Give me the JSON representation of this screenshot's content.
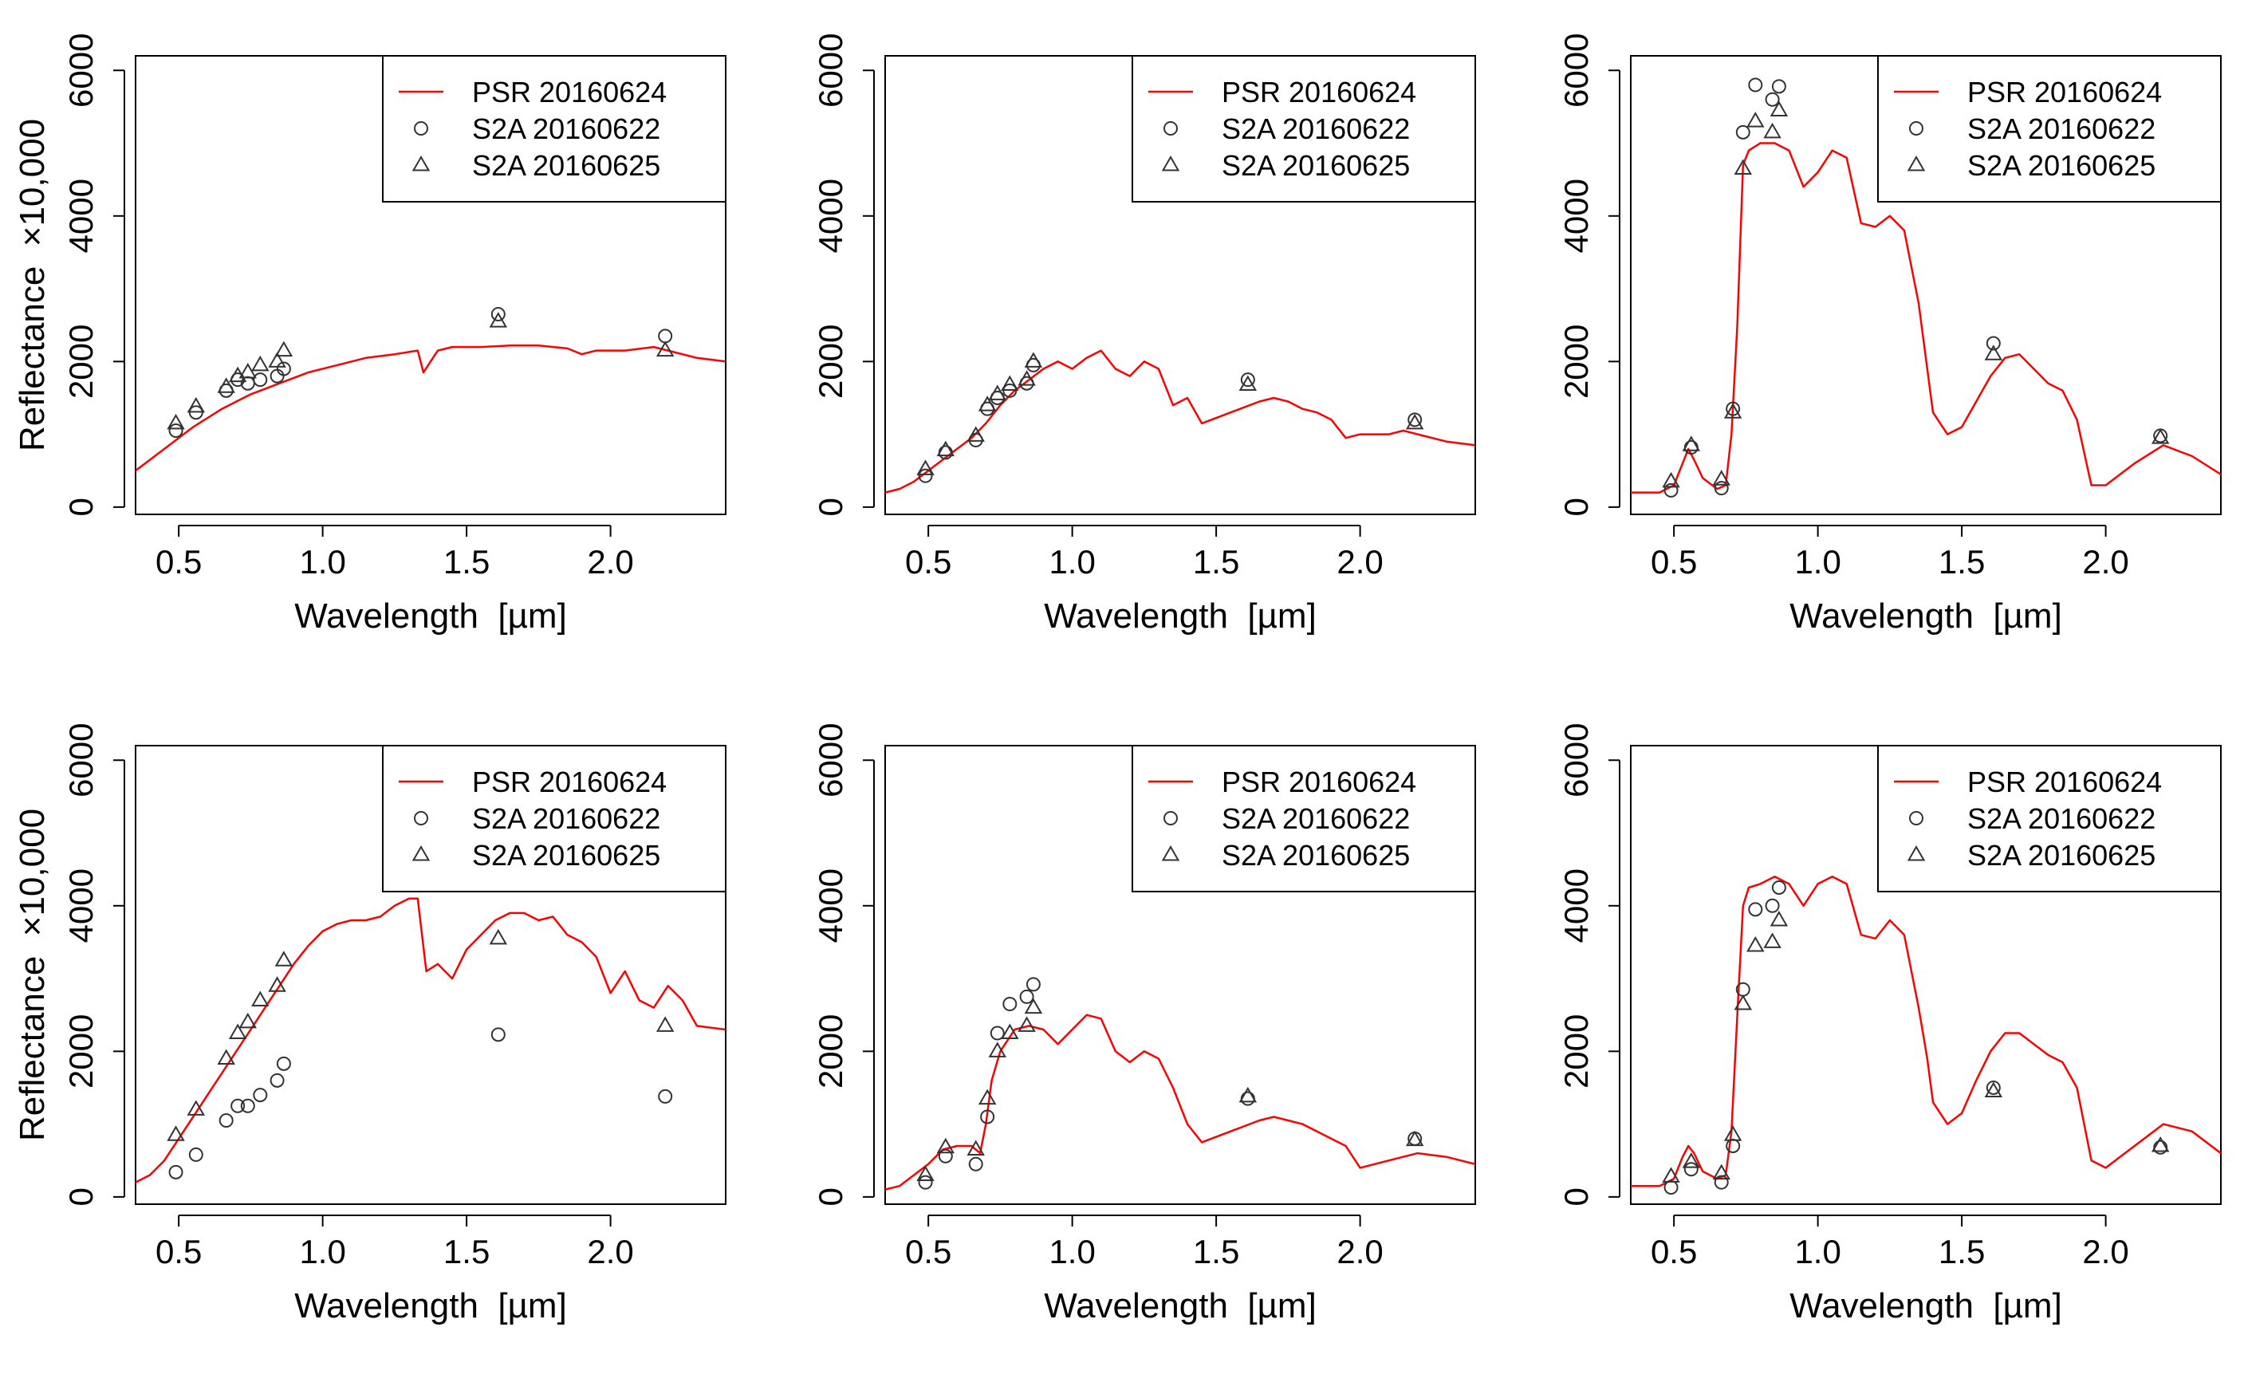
{
  "colors": {
    "psr_line": "#ff0000",
    "markers": "#333333",
    "axes": "#000000"
  },
  "chart_data": [
    {
      "type": "line",
      "panel": "top-left",
      "xlabel": "Wavelength  [µm]",
      "ylabel": "Reflectance  ×10,000",
      "xlim": [
        0.35,
        2.4
      ],
      "ylim": [
        -100,
        6200
      ],
      "xticks": [
        "0.5",
        "1.0",
        "1.5",
        "2.0"
      ],
      "yticks": [
        "0",
        "2000",
        "4000",
        "6000"
      ],
      "legend_position": "top-right",
      "legend": [
        "PSR 20160624",
        "S2A 20160622",
        "S2A 20160625"
      ],
      "series": [
        {
          "name": "PSR 20160624",
          "marker": "line",
          "x": [
            0.35,
            0.45,
            0.55,
            0.65,
            0.75,
            0.85,
            0.95,
            1.05,
            1.15,
            1.25,
            1.33,
            1.35,
            1.4,
            1.45,
            1.55,
            1.65,
            1.75,
            1.85,
            1.9,
            1.95,
            2.05,
            2.15,
            2.2,
            2.3,
            2.4
          ],
          "y": [
            500,
            800,
            1100,
            1350,
            1550,
            1700,
            1850,
            1950,
            2050,
            2100,
            2150,
            1850,
            2150,
            2200,
            2200,
            2220,
            2220,
            2180,
            2100,
            2150,
            2150,
            2200,
            2150,
            2050,
            2000
          ]
        },
        {
          "name": "S2A 20160622",
          "marker": "circle",
          "x": [
            0.49,
            0.56,
            0.665,
            0.705,
            0.74,
            0.783,
            0.842,
            0.865,
            1.61,
            2.19
          ],
          "y": [
            1050,
            1300,
            1600,
            1750,
            1700,
            1750,
            1800,
            1900,
            2650,
            2350
          ]
        },
        {
          "name": "S2A 20160625",
          "marker": "triangle",
          "x": [
            0.49,
            0.56,
            0.665,
            0.705,
            0.74,
            0.783,
            0.842,
            0.865,
            1.61,
            2.19
          ],
          "y": [
            1150,
            1380,
            1650,
            1800,
            1850,
            1950,
            2000,
            2150,
            2550,
            2150
          ]
        }
      ]
    },
    {
      "type": "line",
      "panel": "top-middle",
      "xlabel": "Wavelength  [µm]",
      "ylabel": "",
      "xlim": [
        0.35,
        2.4
      ],
      "ylim": [
        -100,
        6200
      ],
      "xticks": [
        "0.5",
        "1.0",
        "1.5",
        "2.0"
      ],
      "yticks": [
        "0",
        "2000",
        "4000",
        "6000"
      ],
      "legend_position": "top-right",
      "legend": [
        "PSR 20160624",
        "S2A 20160622",
        "S2A 20160625"
      ],
      "series": [
        {
          "name": "PSR 20160624",
          "marker": "line",
          "x": [
            0.35,
            0.4,
            0.45,
            0.5,
            0.55,
            0.6,
            0.65,
            0.7,
            0.75,
            0.8,
            0.85,
            0.9,
            0.95,
            1.0,
            1.05,
            1.1,
            1.15,
            1.2,
            1.25,
            1.3,
            1.35,
            1.4,
            1.45,
            1.55,
            1.65,
            1.7,
            1.75,
            1.8,
            1.85,
            1.9,
            1.95,
            2.0,
            2.1,
            2.15,
            2.2,
            2.3,
            2.4
          ],
          "y": [
            200,
            250,
            350,
            500,
            650,
            800,
            950,
            1150,
            1400,
            1600,
            1750,
            1900,
            2000,
            1900,
            2050,
            2150,
            1900,
            1800,
            2000,
            1900,
            1400,
            1500,
            1150,
            1300,
            1450,
            1500,
            1450,
            1350,
            1300,
            1200,
            950,
            1000,
            1000,
            1050,
            1000,
            900,
            850
          ]
        },
        {
          "name": "S2A 20160622",
          "marker": "circle",
          "x": [
            0.49,
            0.56,
            0.665,
            0.705,
            0.74,
            0.783,
            0.842,
            0.865,
            1.61,
            2.19
          ],
          "y": [
            430,
            750,
            920,
            1350,
            1500,
            1600,
            1700,
            1950,
            1750,
            1200
          ]
        },
        {
          "name": "S2A 20160625",
          "marker": "triangle",
          "x": [
            0.49,
            0.56,
            0.665,
            0.705,
            0.74,
            0.783,
            0.842,
            0.865,
            1.61,
            2.19
          ],
          "y": [
            520,
            780,
            980,
            1400,
            1550,
            1680,
            1750,
            2000,
            1680,
            1150
          ]
        }
      ]
    },
    {
      "type": "line",
      "panel": "top-right",
      "xlabel": "Wavelength  [µm]",
      "ylabel": "",
      "xlim": [
        0.35,
        2.4
      ],
      "ylim": [
        -100,
        6200
      ],
      "xticks": [
        "0.5",
        "1.0",
        "1.5",
        "2.0"
      ],
      "yticks": [
        "0",
        "2000",
        "4000",
        "6000"
      ],
      "legend_position": "top-right",
      "legend": [
        "PSR 20160624",
        "S2A 20160622",
        "S2A 20160625"
      ],
      "series": [
        {
          "name": "PSR 20160624",
          "marker": "line",
          "x": [
            0.35,
            0.45,
            0.5,
            0.53,
            0.55,
            0.57,
            0.6,
            0.65,
            0.68,
            0.7,
            0.72,
            0.74,
            0.76,
            0.8,
            0.85,
            0.9,
            0.95,
            1.0,
            1.05,
            1.1,
            1.15,
            1.2,
            1.25,
            1.3,
            1.35,
            1.38,
            1.4,
            1.45,
            1.5,
            1.55,
            1.6,
            1.65,
            1.7,
            1.75,
            1.8,
            1.85,
            1.9,
            1.95,
            2.0,
            2.1,
            2.2,
            2.3,
            2.4
          ],
          "y": [
            200,
            200,
            300,
            600,
            800,
            650,
            400,
            250,
            300,
            1000,
            2500,
            4700,
            4900,
            5000,
            5000,
            4900,
            4400,
            4600,
            4900,
            4800,
            3900,
            3850,
            4000,
            3800,
            2800,
            1900,
            1300,
            1000,
            1100,
            1450,
            1800,
            2050,
            2100,
            1900,
            1700,
            1600,
            1200,
            300,
            300,
            600,
            850,
            700,
            450
          ]
        },
        {
          "name": "S2A 20160622",
          "marker": "circle",
          "x": [
            0.49,
            0.56,
            0.665,
            0.705,
            0.74,
            0.783,
            0.842,
            0.865,
            1.61,
            2.19
          ],
          "y": [
            230,
            820,
            260,
            1350,
            5150,
            5800,
            5600,
            5780,
            2250,
            980
          ]
        },
        {
          "name": "S2A 20160625",
          "marker": "triangle",
          "x": [
            0.49,
            0.56,
            0.665,
            0.705,
            0.74,
            0.783,
            0.842,
            0.865,
            1.61,
            2.19
          ],
          "y": [
            350,
            850,
            380,
            1300,
            4650,
            5300,
            5150,
            5450,
            2100,
            950
          ]
        }
      ]
    },
    {
      "type": "line",
      "panel": "bottom-left",
      "xlabel": "Wavelength  [µm]",
      "ylabel": "Reflectance  ×10,000",
      "xlim": [
        0.35,
        2.4
      ],
      "ylim": [
        -100,
        6200
      ],
      "xticks": [
        "0.5",
        "1.0",
        "1.5",
        "2.0"
      ],
      "yticks": [
        "0",
        "2000",
        "4000",
        "6000"
      ],
      "legend_position": "top-right",
      "legend": [
        "PSR 20160624",
        "S2A 20160622",
        "S2A 20160625"
      ],
      "series": [
        {
          "name": "PSR 20160624",
          "marker": "line",
          "x": [
            0.35,
            0.4,
            0.45,
            0.5,
            0.55,
            0.6,
            0.65,
            0.7,
            0.75,
            0.8,
            0.85,
            0.9,
            0.95,
            1.0,
            1.05,
            1.1,
            1.15,
            1.2,
            1.25,
            1.3,
            1.33,
            1.36,
            1.4,
            1.45,
            1.5,
            1.55,
            1.6,
            1.65,
            1.7,
            1.75,
            1.8,
            1.85,
            1.9,
            1.95,
            2.0,
            2.05,
            2.1,
            2.15,
            2.2,
            2.25,
            2.3,
            2.4
          ],
          "y": [
            200,
            300,
            500,
            800,
            1100,
            1400,
            1700,
            2000,
            2300,
            2600,
            2900,
            3200,
            3450,
            3650,
            3750,
            3800,
            3800,
            3850,
            4000,
            4100,
            4100,
            3100,
            3200,
            3000,
            3400,
            3600,
            3800,
            3900,
            3900,
            3800,
            3850,
            3600,
            3500,
            3300,
            2800,
            3100,
            2700,
            2600,
            2900,
            2700,
            2350,
            2300
          ]
        },
        {
          "name": "S2A 20160622",
          "marker": "circle",
          "x": [
            0.49,
            0.56,
            0.665,
            0.705,
            0.74,
            0.783,
            0.842,
            0.865,
            1.61,
            2.19
          ],
          "y": [
            340,
            580,
            1050,
            1250,
            1250,
            1400,
            1600,
            1830,
            2230,
            1380
          ]
        },
        {
          "name": "S2A 20160625",
          "marker": "triangle",
          "x": [
            0.49,
            0.56,
            0.665,
            0.705,
            0.74,
            0.783,
            0.842,
            0.865,
            1.61,
            2.19
          ],
          "y": [
            850,
            1200,
            1900,
            2250,
            2400,
            2700,
            2900,
            3250,
            3550,
            2350
          ]
        }
      ]
    },
    {
      "type": "line",
      "panel": "bottom-middle",
      "xlabel": "Wavelength  [µm]",
      "ylabel": "",
      "xlim": [
        0.35,
        2.4
      ],
      "ylim": [
        -100,
        6200
      ],
      "xticks": [
        "0.5",
        "1.0",
        "1.5",
        "2.0"
      ],
      "yticks": [
        "0",
        "2000",
        "4000",
        "6000"
      ],
      "legend_position": "top-right",
      "legend": [
        "PSR 20160624",
        "S2A 20160622",
        "S2A 20160625"
      ],
      "series": [
        {
          "name": "PSR 20160624",
          "marker": "line",
          "x": [
            0.35,
            0.4,
            0.45,
            0.5,
            0.55,
            0.6,
            0.65,
            0.68,
            0.7,
            0.72,
            0.75,
            0.8,
            0.85,
            0.9,
            0.95,
            1.0,
            1.05,
            1.1,
            1.15,
            1.2,
            1.25,
            1.3,
            1.35,
            1.4,
            1.45,
            1.55,
            1.65,
            1.7,
            1.75,
            1.8,
            1.85,
            1.9,
            1.95,
            2.0,
            2.1,
            2.2,
            2.3,
            2.4
          ],
          "y": [
            100,
            150,
            300,
            450,
            650,
            700,
            700,
            600,
            1000,
            1600,
            2000,
            2300,
            2350,
            2300,
            2100,
            2300,
            2500,
            2450,
            2000,
            1850,
            2000,
            1900,
            1500,
            1000,
            750,
            900,
            1050,
            1100,
            1050,
            1000,
            900,
            800,
            700,
            400,
            500,
            600,
            550,
            450
          ]
        },
        {
          "name": "S2A 20160622",
          "marker": "circle",
          "x": [
            0.49,
            0.56,
            0.665,
            0.705,
            0.74,
            0.783,
            0.842,
            0.865,
            1.61,
            2.19
          ],
          "y": [
            200,
            560,
            450,
            1100,
            2250,
            2650,
            2750,
            2920,
            1350,
            800
          ]
        },
        {
          "name": "S2A 20160625",
          "marker": "triangle",
          "x": [
            0.49,
            0.56,
            0.665,
            0.705,
            0.74,
            0.783,
            0.842,
            0.865,
            1.61,
            2.19
          ],
          "y": [
            300,
            680,
            650,
            1350,
            2000,
            2250,
            2350,
            2600,
            1380,
            780
          ]
        }
      ]
    },
    {
      "type": "line",
      "panel": "bottom-right",
      "xlabel": "Wavelength  [µm]",
      "ylabel": "",
      "xlim": [
        0.35,
        2.4
      ],
      "ylim": [
        -100,
        6200
      ],
      "xticks": [
        "0.5",
        "1.0",
        "1.5",
        "2.0"
      ],
      "yticks": [
        "0",
        "2000",
        "4000",
        "6000"
      ],
      "legend_position": "top-right",
      "legend": [
        "PSR 20160624",
        "S2A 20160622",
        "S2A 20160625"
      ],
      "series": [
        {
          "name": "PSR 20160624",
          "marker": "line",
          "x": [
            0.35,
            0.45,
            0.5,
            0.53,
            0.55,
            0.57,
            0.6,
            0.65,
            0.68,
            0.7,
            0.72,
            0.74,
            0.76,
            0.8,
            0.85,
            0.9,
            0.95,
            1.0,
            1.05,
            1.1,
            1.15,
            1.2,
            1.25,
            1.3,
            1.35,
            1.38,
            1.4,
            1.45,
            1.5,
            1.55,
            1.6,
            1.65,
            1.7,
            1.75,
            1.8,
            1.85,
            1.9,
            1.95,
            2.0,
            2.1,
            2.2,
            2.3,
            2.4
          ],
          "y": [
            150,
            150,
            250,
            550,
            700,
            600,
            350,
            250,
            300,
            900,
            2500,
            4000,
            4250,
            4300,
            4400,
            4300,
            4000,
            4300,
            4400,
            4300,
            3600,
            3550,
            3800,
            3600,
            2600,
            1900,
            1300,
            1000,
            1150,
            1600,
            2000,
            2250,
            2250,
            2100,
            1950,
            1850,
            1500,
            500,
            400,
            700,
            1000,
            900,
            600
          ]
        },
        {
          "name": "S2A 20160622",
          "marker": "circle",
          "x": [
            0.49,
            0.56,
            0.665,
            0.705,
            0.74,
            0.783,
            0.842,
            0.865,
            1.61,
            2.19
          ],
          "y": [
            130,
            380,
            200,
            700,
            2850,
            3950,
            4000,
            4250,
            1500,
            680
          ]
        },
        {
          "name": "S2A 20160625",
          "marker": "triangle",
          "x": [
            0.49,
            0.56,
            0.665,
            0.705,
            0.74,
            0.783,
            0.842,
            0.865,
            1.61,
            2.19
          ],
          "y": [
            280,
            480,
            320,
            850,
            2650,
            3450,
            3500,
            3800,
            1450,
            700
          ]
        }
      ]
    }
  ]
}
